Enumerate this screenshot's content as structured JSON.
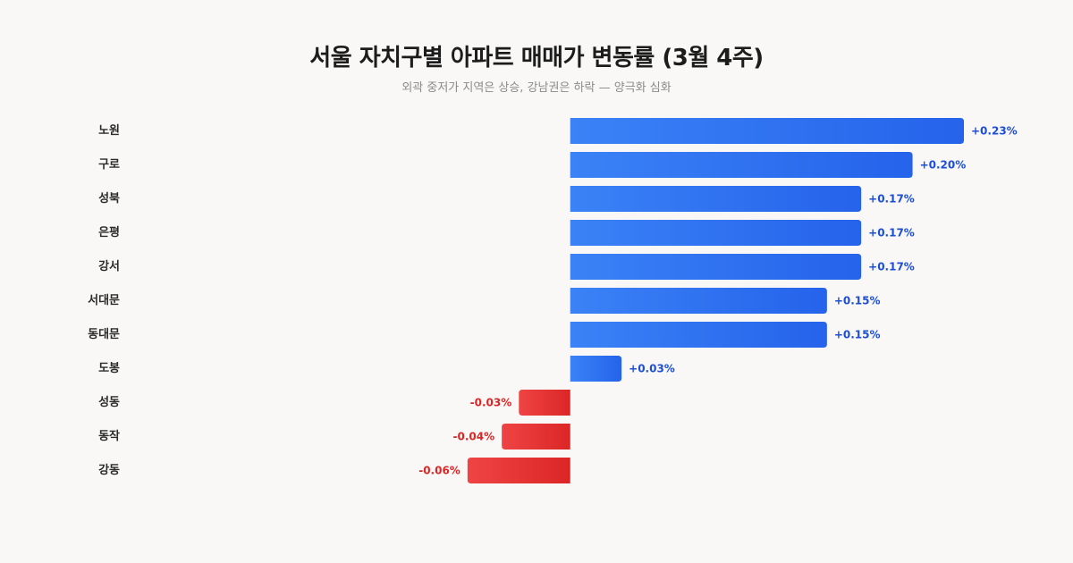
{
  "header": {
    "title": "서울 자치구별 아파트 매매가 변동률 (3월 4주)",
    "subtitle": "외곽 중저가 지역은 상승, 강남권은 하락 — 양극화 심화"
  },
  "colors": {
    "positive_start": "#3b82f6",
    "positive_end": "#2563eb",
    "negative_start": "#ef4444",
    "negative_end": "#dc2626",
    "positive_text": "#1d4ed8",
    "negative_text": "#dc2626"
  },
  "chart_data": {
    "type": "bar",
    "orientation": "horizontal",
    "title": "서울 자치구별 아파트 매매가 변동률 (3월 4주)",
    "subtitle": "외곽 중저가 지역은 상승, 강남권은 하락 — 양극화 심화",
    "unit": "%",
    "categories": [
      "노원",
      "구로",
      "성북",
      "은평",
      "강서",
      "서대문",
      "동대문",
      "도봉",
      "성동",
      "동작",
      "강동"
    ],
    "values": [
      0.23,
      0.2,
      0.17,
      0.17,
      0.17,
      0.15,
      0.15,
      0.03,
      -0.03,
      -0.04,
      -0.06
    ],
    "value_labels": [
      "+0.23%",
      "+0.20%",
      "+0.17%",
      "+0.17%",
      "+0.17%",
      "+0.15%",
      "+0.15%",
      "+0.03%",
      "-0.03%",
      "-0.04%",
      "-0.06%"
    ],
    "xlim": [
      -0.26,
      0.23
    ],
    "grid": false,
    "legend": "none"
  }
}
